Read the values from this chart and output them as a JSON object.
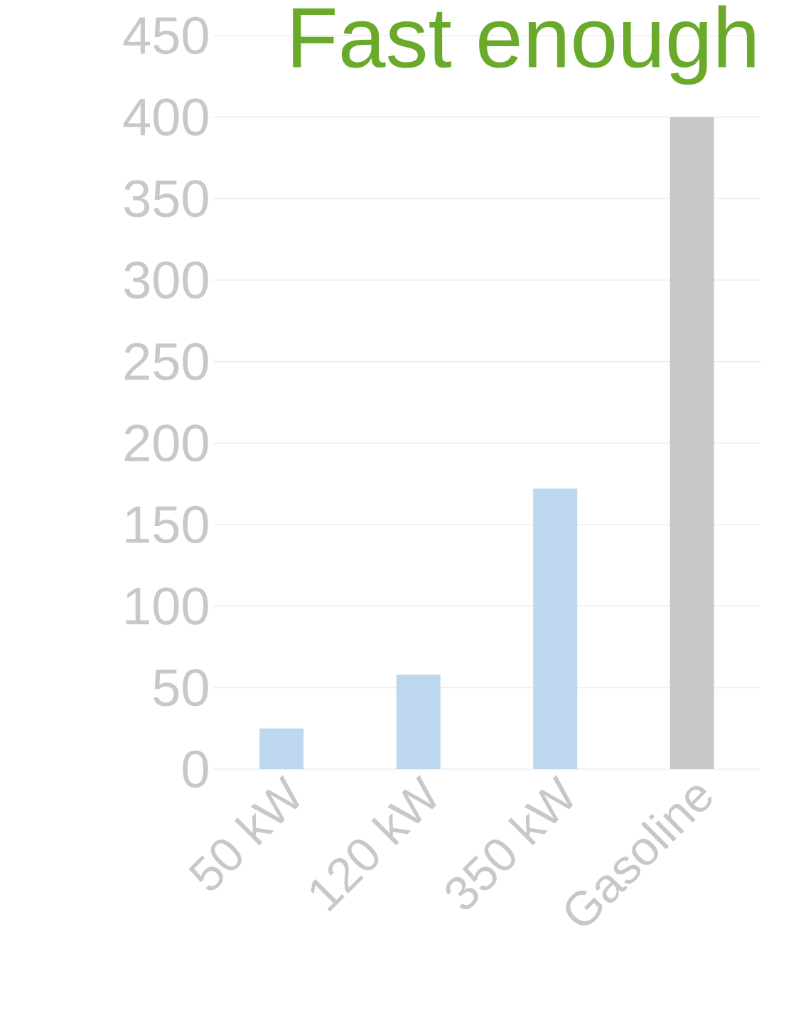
{
  "chart_data": {
    "type": "bar",
    "title": "Fast enough",
    "categories": [
      "50 kW",
      "120 kW",
      "350 kW",
      "Gasoline"
    ],
    "values": [
      25,
      58,
      172,
      400
    ],
    "colors": [
      "#bdd7ee",
      "#bdd7ee",
      "#bdd7ee",
      "#c8c8c8"
    ],
    "ylim": [
      0,
      450
    ],
    "yticks": [
      0,
      50,
      100,
      150,
      200,
      250,
      300,
      350,
      400,
      450
    ],
    "grid": "y"
  }
}
